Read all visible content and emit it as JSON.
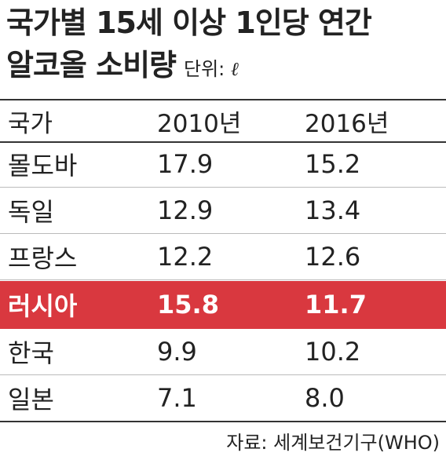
{
  "title": {
    "line1": "국가별 15세 이상 1인당 연간",
    "line2": "알코올 소비량",
    "unit_label": "단위:",
    "unit_symbol": "ℓ"
  },
  "table": {
    "headers": [
      "국가",
      "2010년",
      "2016년"
    ],
    "rows": [
      [
        "몰도바",
        "17.9",
        "15.2"
      ],
      [
        "독일",
        "12.9",
        "13.4"
      ],
      [
        "프랑스",
        "12.2",
        "12.6"
      ],
      [
        "러시아",
        "15.8",
        "11.7"
      ],
      [
        "한국",
        "9.9",
        "10.2"
      ],
      [
        "일본",
        "7.1",
        "8.0"
      ]
    ],
    "highlighted_row": "러시아"
  },
  "source": "자료: 세계보건기구(WHO)",
  "colors": {
    "highlight": "#d9383f",
    "text": "#222222",
    "rule": "#333333"
  }
}
